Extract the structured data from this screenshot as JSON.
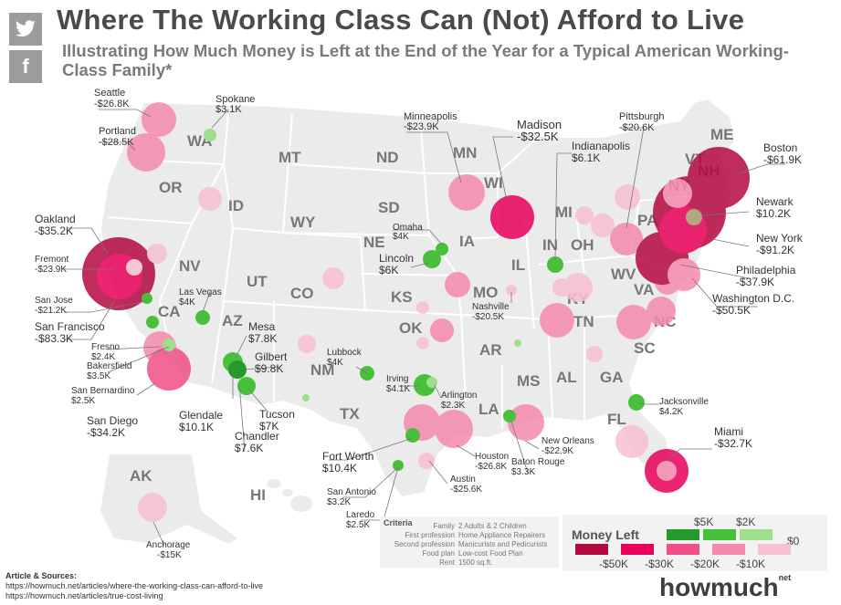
{
  "header": {
    "title": "Where The Working Class Can (Not) Afford to Live",
    "subtitle": "Illustrating How Much Money is Left at the End of the Year for a Typical American Working-Class Family*",
    "twitter_icon": "twitter-icon",
    "facebook_icon": "facebook-icon"
  },
  "colors": {
    "land": "#ebebeb",
    "border": "#ffffff",
    "neg50": "#b3093f",
    "neg30": "#e8005a",
    "neg20": "#ef4e88",
    "neg10": "#f589ad",
    "neg0": "#f9bfd2",
    "pos5": "#249a2b",
    "pos2": "#49c03c",
    "pos0": "#9ddf8c"
  },
  "states": [
    "WA",
    "OR",
    "ID",
    "MT",
    "ND",
    "SD",
    "WY",
    "NE",
    "NV",
    "CA",
    "UT",
    "CO",
    "KS",
    "AZ",
    "NM",
    "OK",
    "TX",
    "MN",
    "IA",
    "MO",
    "AR",
    "LA",
    "WI",
    "IL",
    "MI",
    "IN",
    "OH",
    "KY",
    "TN",
    "MS",
    "AL",
    "GA",
    "FL",
    "SC",
    "NC",
    "VA",
    "WV",
    "PA",
    "NY",
    "ME",
    "NH",
    "VT",
    "AK",
    "HI"
  ],
  "cities": [
    {
      "name": "Seattle",
      "value": "-$26.8K"
    },
    {
      "name": "Spokane",
      "value": "$3.1K"
    },
    {
      "name": "Portland",
      "value": "-$28.5K"
    },
    {
      "name": "Minneapolis",
      "value": "-$23.9K"
    },
    {
      "name": "Madison",
      "value": "-$32.5K"
    },
    {
      "name": "Pittsburgh",
      "value": "-$20.6K"
    },
    {
      "name": "Indianapolis",
      "value": "$6.1K"
    },
    {
      "name": "Boston",
      "value": "-$61.9K"
    },
    {
      "name": "Newark",
      "value": "$10.2K"
    },
    {
      "name": "New York",
      "value": "-$91.2K"
    },
    {
      "name": "Philadelphia",
      "value": "-$37.9K"
    },
    {
      "name": "Washington D.C.",
      "value": "-$50.5K"
    },
    {
      "name": "Oakland",
      "value": "-$35.2K"
    },
    {
      "name": "Fremont",
      "value": "-$23.9K"
    },
    {
      "name": "San Jose",
      "value": "-$21.2K"
    },
    {
      "name": "San Francisco",
      "value": "-$83.3K"
    },
    {
      "name": "Las Vegas",
      "value": "$4K"
    },
    {
      "name": "Omaha",
      "value": "$4K"
    },
    {
      "name": "Lincoln",
      "value": "$6K"
    },
    {
      "name": "Nashville",
      "value": "-$20.5K"
    },
    {
      "name": "Mesa",
      "value": "$7.8K"
    },
    {
      "name": "Gilbert",
      "value": "$9.8K"
    },
    {
      "name": "Fresno",
      "value": "$2.4K"
    },
    {
      "name": "Bakersfield",
      "value": "$3.5K"
    },
    {
      "name": "San Bernardino",
      "value": "$2.5K"
    },
    {
      "name": "San Diego",
      "value": "-$34.2K"
    },
    {
      "name": "Glendale",
      "value": "$10.1K"
    },
    {
      "name": "Tucson",
      "value": "$7K"
    },
    {
      "name": "Chandler",
      "value": "$7.6K"
    },
    {
      "name": "Lubbock",
      "value": "$4K"
    },
    {
      "name": "Irving",
      "value": "$4.1K"
    },
    {
      "name": "Arlington",
      "value": "$2.3K"
    },
    {
      "name": "Jacksonville",
      "value": "$4.2K"
    },
    {
      "name": "Miami",
      "value": "-$32.7K"
    },
    {
      "name": "Fort Worth",
      "value": "$10.4K"
    },
    {
      "name": "Houston",
      "value": "-$26.8K"
    },
    {
      "name": "New Orleans",
      "value": "-$22.9K"
    },
    {
      "name": "Baton Rouge",
      "value": "$3.3K"
    },
    {
      "name": "Austin",
      "value": "-$25.6K"
    },
    {
      "name": "San Antonio",
      "value": "$3.2K"
    },
    {
      "name": "Laredo",
      "value": "$2.5K"
    },
    {
      "name": "Anchorage",
      "value": "-$15K"
    }
  ],
  "criteria": {
    "title": "Criteria",
    "rows": [
      {
        "key": "Family",
        "value": "2 Adults & 2 Children"
      },
      {
        "key": "First profession",
        "value": "Home Appliance Repairers"
      },
      {
        "key": "Second profession",
        "value": "Manicurists and Pedicurists"
      },
      {
        "key": "Food plan",
        "value": "Low-cost Food Plan"
      },
      {
        "key": "Rent",
        "value": "1500 sq.ft."
      }
    ]
  },
  "legend": {
    "title": "Money Left",
    "positive_labels": [
      "$5K",
      "$2K",
      "$0"
    ],
    "negative_labels": [
      "-$50K",
      "-$30K",
      "-$20K",
      "-$10K"
    ]
  },
  "sources": {
    "title": "Article & Sources:",
    "links": [
      "https://howmuch.net/articles/where-the-working-class-can-afford-to-live",
      "https://howmuch.net/articles/true-cost-living"
    ]
  },
  "logo": {
    "text": "howmuch",
    "suffix": "net"
  }
}
